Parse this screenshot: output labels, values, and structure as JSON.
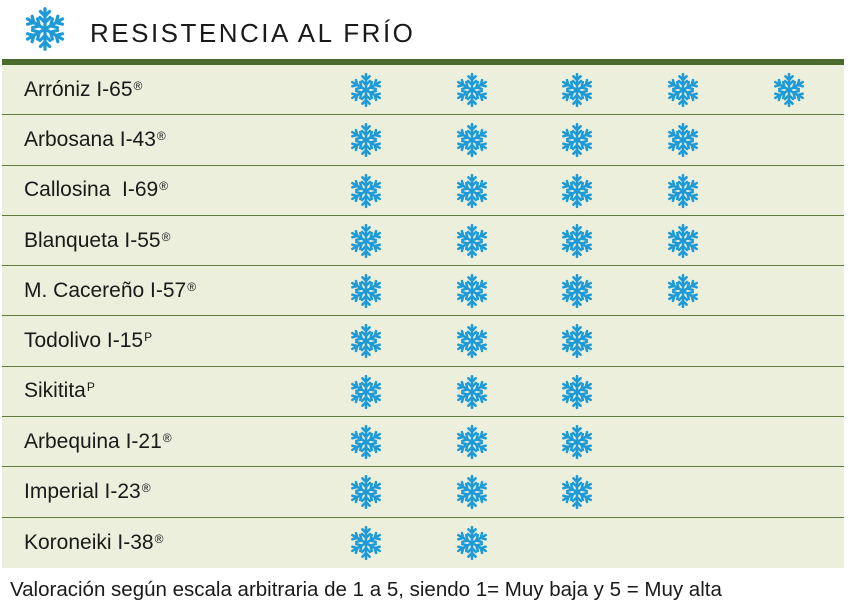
{
  "header": {
    "title": "RESISTENCIA AL FRÍO",
    "icon": "snowflake-icon"
  },
  "colors": {
    "snowflake": "#1e9ad6",
    "row_background": "#ecefdc",
    "row_divider": "#5d7a3c",
    "top_rule": "#4a6b2c"
  },
  "chart_data": {
    "type": "table",
    "title": "RESISTENCIA AL FRÍO",
    "scale_max": 5,
    "rows": [
      {
        "name": "Arróniz I-65",
        "mark": "®",
        "value": 5
      },
      {
        "name": "Arbosana I-43",
        "mark": "®",
        "value": 4
      },
      {
        "name": "Callosina  I-69",
        "mark": "®",
        "value": 4
      },
      {
        "name": "Blanqueta I-55",
        "mark": "®",
        "value": 4
      },
      {
        "name": "M. Cacereño I-57",
        "mark": "®",
        "value": 4
      },
      {
        "name": "Todolivo I-15",
        "mark": "P",
        "value": 3
      },
      {
        "name": "Sikitita",
        "mark": "P",
        "value": 3
      },
      {
        "name": "Arbequina I-21",
        "mark": "®",
        "value": 3
      },
      {
        "name": "Imperial I-23",
        "mark": "®",
        "value": 3
      },
      {
        "name": "Koroneiki I-38",
        "mark": "®",
        "value": 2
      }
    ],
    "footnote": "Valoración según escala arbitraria de 1 a 5, siendo 1= Muy baja y 5 = Muy alta"
  }
}
